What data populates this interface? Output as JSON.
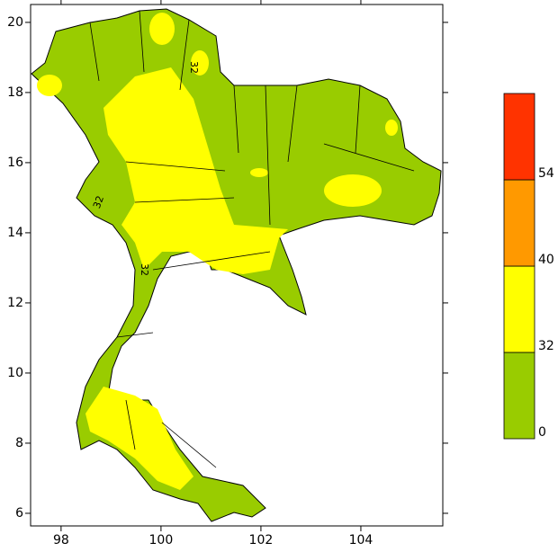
{
  "chart_data": {
    "type": "map",
    "xlim": [
      97.39,
      105.64
    ],
    "ylim": [
      5.64,
      20.51
    ],
    "xticks": [
      98,
      100,
      102,
      104
    ],
    "yticks": [
      6,
      8,
      10,
      12,
      14,
      16,
      18,
      20
    ],
    "contour_labels": [
      "32",
      "32",
      "32"
    ],
    "colorbar": {
      "ticks": [
        0,
        32,
        40,
        54
      ],
      "colors": [
        "#99cc00",
        "#ffff00",
        "#ff9900",
        "#ff3300"
      ]
    }
  }
}
